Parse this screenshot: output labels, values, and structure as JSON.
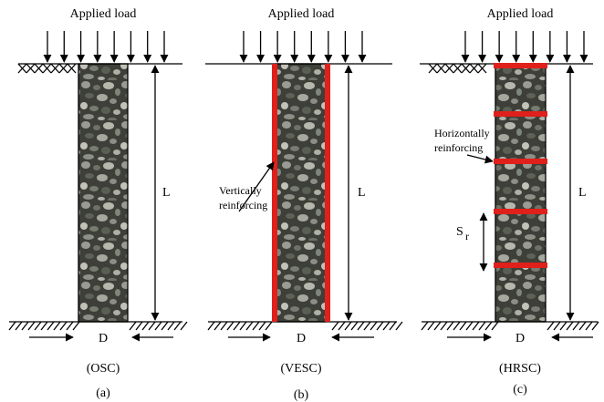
{
  "panels": [
    {
      "load_label": "Applied load",
      "length_label": "L",
      "diameter_label": "D",
      "type_label": "(OSC)",
      "caption": "(a)"
    },
    {
      "load_label": "Applied load",
      "length_label": "L",
      "diameter_label": "D",
      "type_label": "(VESC)",
      "caption": "(b)",
      "annotation": [
        "Vertically",
        "reinforcing"
      ]
    },
    {
      "load_label": "Applied load",
      "length_label": "L",
      "diameter_label": "D",
      "type_label": "(HRSC)",
      "caption": "(c)",
      "annotation": [
        "Horizontally",
        "reinforcing"
      ],
      "spacing_label": {
        "symbol": "S",
        "subscript": "r"
      }
    }
  ]
}
